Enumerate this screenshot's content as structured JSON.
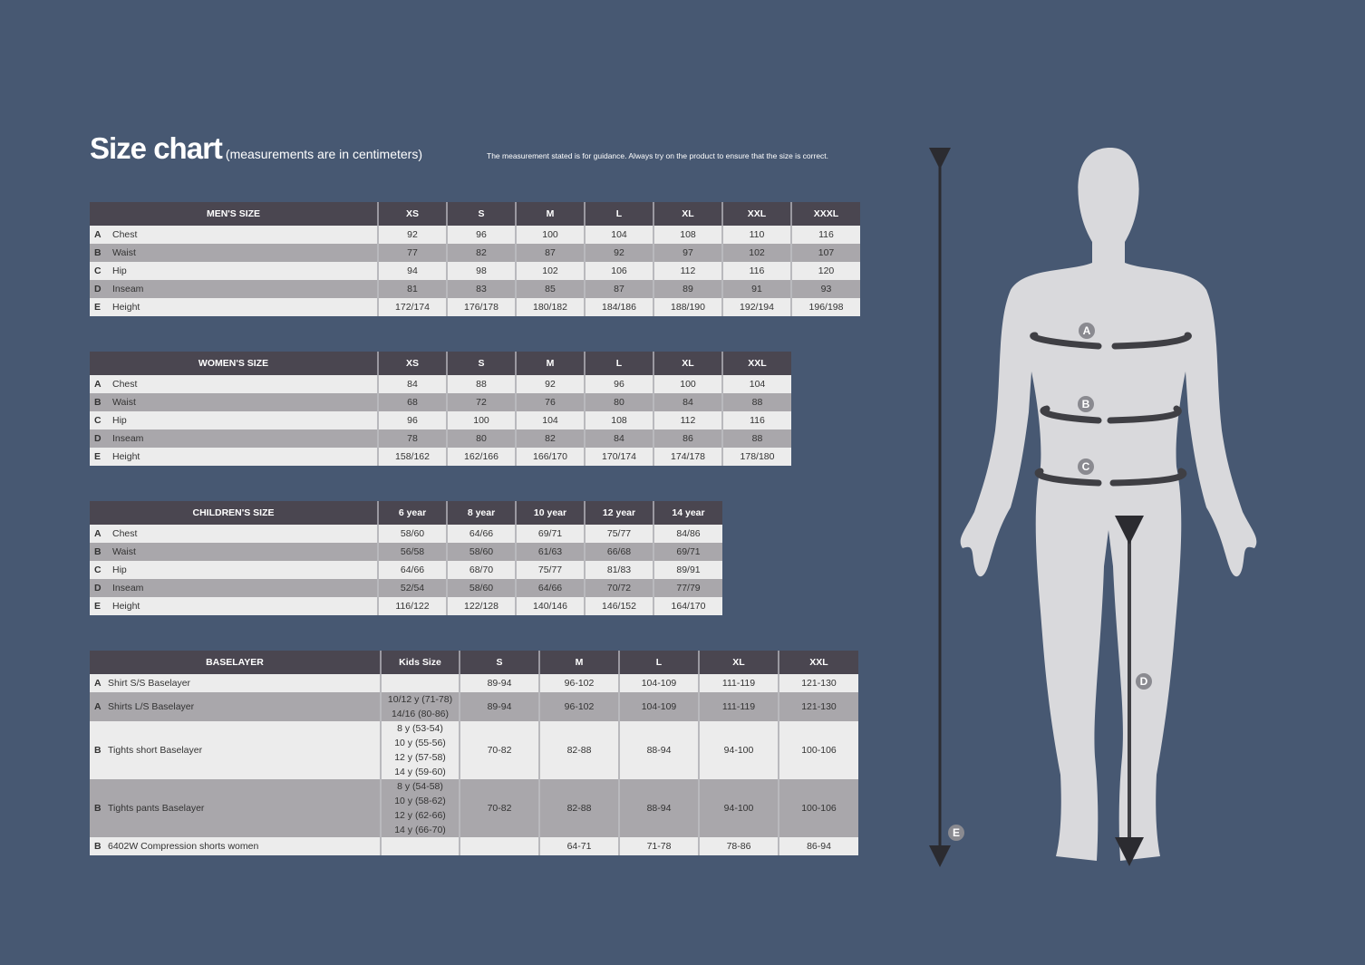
{
  "title": "Size chart",
  "subtitle": "(measurements are in centimeters)",
  "note": "The measurement stated is for guidance. Always try on the product to ensure that the size is correct.",
  "colors": {
    "background": "#475872",
    "header": "#4a4650",
    "row_light": "#ececec",
    "row_dark": "#a9a7ab",
    "figure": "#d9d9dc"
  },
  "tables": [
    {
      "id": "mens",
      "headers": [
        "MEN'S SIZE",
        "XS",
        "S",
        "M",
        "L",
        "XL",
        "XXL",
        "XXXL"
      ],
      "rows": [
        {
          "letter": "A",
          "label": "Chest",
          "values": [
            "92",
            "96",
            "100",
            "104",
            "108",
            "110",
            "116"
          ]
        },
        {
          "letter": "B",
          "label": "Waist",
          "values": [
            "77",
            "82",
            "87",
            "92",
            "97",
            "102",
            "107"
          ]
        },
        {
          "letter": "C",
          "label": "Hip",
          "values": [
            "94",
            "98",
            "102",
            "106",
            "112",
            "116",
            "120"
          ]
        },
        {
          "letter": "D",
          "label": "Inseam",
          "values": [
            "81",
            "83",
            "85",
            "87",
            "89",
            "91",
            "93"
          ]
        },
        {
          "letter": "E",
          "label": "Height",
          "values": [
            "172/174",
            "176/178",
            "180/182",
            "184/186",
            "188/190",
            "192/194",
            "196/198"
          ]
        }
      ]
    },
    {
      "id": "womens",
      "headers": [
        "WOMEN'S SIZE",
        "XS",
        "S",
        "M",
        "L",
        "XL",
        "XXL"
      ],
      "rows": [
        {
          "letter": "A",
          "label": "Chest",
          "values": [
            "84",
            "88",
            "92",
            "96",
            "100",
            "104"
          ]
        },
        {
          "letter": "B",
          "label": "Waist",
          "values": [
            "68",
            "72",
            "76",
            "80",
            "84",
            "88"
          ]
        },
        {
          "letter": "C",
          "label": "Hip",
          "values": [
            "96",
            "100",
            "104",
            "108",
            "112",
            "116"
          ]
        },
        {
          "letter": "D",
          "label": "Inseam",
          "values": [
            "78",
            "80",
            "82",
            "84",
            "86",
            "88"
          ]
        },
        {
          "letter": "E",
          "label": "Height",
          "values": [
            "158/162",
            "162/166",
            "166/170",
            "170/174",
            "174/178",
            "178/180"
          ]
        }
      ]
    },
    {
      "id": "childrens",
      "headers": [
        "CHILDREN'S SIZE",
        "6 year",
        "8 year",
        "10 year",
        "12 year",
        "14 year"
      ],
      "rows": [
        {
          "letter": "A",
          "label": "Chest",
          "values": [
            "58/60",
            "64/66",
            "69/71",
            "75/77",
            "84/86"
          ]
        },
        {
          "letter": "B",
          "label": "Waist",
          "values": [
            "56/58",
            "58/60",
            "61/63",
            "66/68",
            "69/71"
          ]
        },
        {
          "letter": "C",
          "label": "Hip",
          "values": [
            "64/66",
            "68/70",
            "75/77",
            "81/83",
            "89/91"
          ]
        },
        {
          "letter": "D",
          "label": "Inseam",
          "values": [
            "52/54",
            "58/60",
            "64/66",
            "70/72",
            "77/79"
          ]
        },
        {
          "letter": "E",
          "label": "Height",
          "values": [
            "116/122",
            "122/128",
            "140/146",
            "146/152",
            "164/170"
          ]
        }
      ]
    },
    {
      "id": "baselayer",
      "headers": [
        "BASELAYER",
        "Kids Size",
        "S",
        "M",
        "L",
        "XL",
        "XXL"
      ],
      "rows": [
        {
          "letter": "A",
          "label": "Shirt S/S Baselayer",
          "values": [
            "",
            "89-94",
            "96-102",
            "104-109",
            "111-119",
            "121-130"
          ]
        },
        {
          "letter": "A",
          "label": "Shirts L/S Baselayer",
          "values": [
            "10/12 y (71-78)\n14/16 (80-86)",
            "89-94",
            "96-102",
            "104-109",
            "111-119",
            "121-130"
          ]
        },
        {
          "letter": "B",
          "label": "Tights short Baselayer",
          "values": [
            "8 y (53-54)\n10 y (55-56)\n12 y (57-58)\n14 y (59-60)",
            "70-82",
            "82-88",
            "88-94",
            "94-100",
            "100-106"
          ]
        },
        {
          "letter": "B",
          "label": "Tights pants Baselayer",
          "values": [
            "8 y (54-58)\n10 y (58-62)\n12 y (62-66)\n14 y (66-70)",
            "70-82",
            "82-88",
            "88-94",
            "94-100",
            "100-106"
          ]
        },
        {
          "letter": "B",
          "label": "6402W Compression shorts women",
          "values": [
            "",
            "",
            "64-71",
            "71-78",
            "78-86",
            "86-94"
          ]
        }
      ]
    }
  ],
  "figure": {
    "markers": [
      "A",
      "B",
      "C",
      "D",
      "E"
    ]
  }
}
